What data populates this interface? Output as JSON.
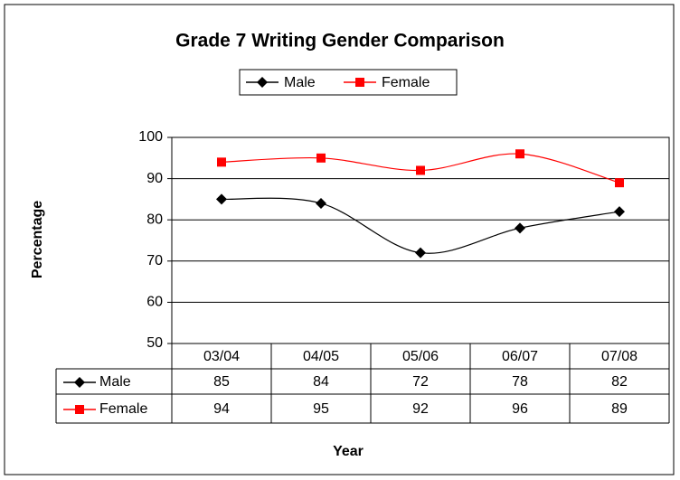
{
  "chart_data": {
    "type": "line",
    "title": "Grade 7 Writing Gender Comparison",
    "x_label": "Year",
    "y_label": "Percentage",
    "categories": [
      "03/04",
      "04/05",
      "05/06",
      "06/07",
      "07/08"
    ],
    "series": [
      {
        "name": "Male",
        "color": "#000000",
        "marker": "diamond",
        "values": [
          85,
          84,
          72,
          78,
          82
        ]
      },
      {
        "name": "Female",
        "color": "#ff0000",
        "marker": "square",
        "values": [
          94,
          95,
          92,
          96,
          89
        ]
      }
    ],
    "ylim": [
      50,
      100
    ],
    "yticks": [
      50,
      60,
      70,
      80,
      90,
      100
    ],
    "grid": true,
    "smooth": true,
    "legend": "top"
  }
}
